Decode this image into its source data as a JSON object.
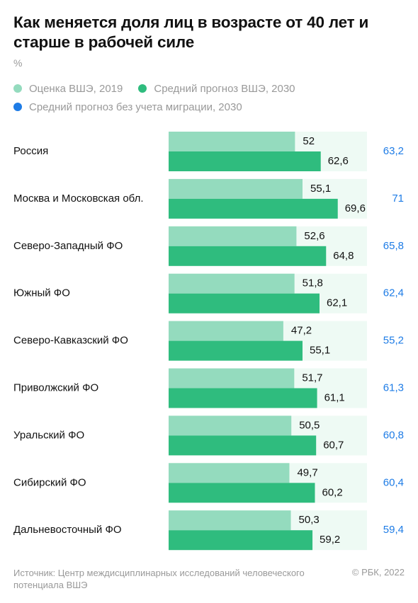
{
  "title": "Как меняется доля лиц в возрасте от 40 лет и старше в рабочей силе",
  "unit": "%",
  "legend": [
    {
      "label": "Оценка ВШЭ, 2019",
      "color": "#94dbbe"
    },
    {
      "label": "Средний прогноз ВШЭ, 2030",
      "color": "#2fbc7e"
    },
    {
      "label": "Средний прогноз без учета миграции, 2030",
      "color": "#1e7ce6"
    }
  ],
  "chart_data": {
    "type": "bar",
    "orientation": "horizontal",
    "categories": [
      "Россия",
      "Москва и Московская обл.",
      "Северо-Западный ФО",
      "Южный ФО",
      "Северо-Кавказский ФО",
      "Приволжский ФО",
      "Уральский ФО",
      "Сибирский ФО",
      "Дальневосточный ФО"
    ],
    "series": [
      {
        "name": "Оценка ВШЭ, 2019",
        "values": [
          52,
          55.1,
          52.6,
          51.8,
          47.2,
          51.7,
          50.5,
          49.7,
          50.3
        ],
        "labels": [
          "52",
          "55,1",
          "52,6",
          "51,8",
          "47,2",
          "51,7",
          "50,5",
          "49,7",
          "50,3"
        ],
        "color": "#94dbbe"
      },
      {
        "name": "Средний прогноз ВШЭ, 2030",
        "values": [
          62.6,
          69.6,
          64.8,
          62.1,
          55.1,
          61.1,
          60.7,
          60.2,
          59.2
        ],
        "labels": [
          "62,6",
          "69,6",
          "64,8",
          "62,1",
          "55,1",
          "61,1",
          "60,7",
          "60,2",
          "59,2"
        ],
        "color": "#2fbc7e"
      },
      {
        "name": "Средний прогноз без учета миграции, 2030",
        "values": [
          63.2,
          71,
          65.8,
          62.4,
          55.2,
          61.3,
          60.8,
          60.4,
          59.4
        ],
        "labels": [
          "63,2",
          "71",
          "65,8",
          "62,4",
          "55,2",
          "61,3",
          "60,8",
          "60,4",
          "59,4"
        ],
        "color": "#1e7ce6"
      }
    ],
    "xlim": [
      0,
      100
    ],
    "grid": false,
    "legend_position": "top"
  },
  "footer": {
    "source": "Источник: Центр междисциплинарных исследований человеческого потенциала ВШЭ",
    "copyright": "© РБК, 2022"
  }
}
